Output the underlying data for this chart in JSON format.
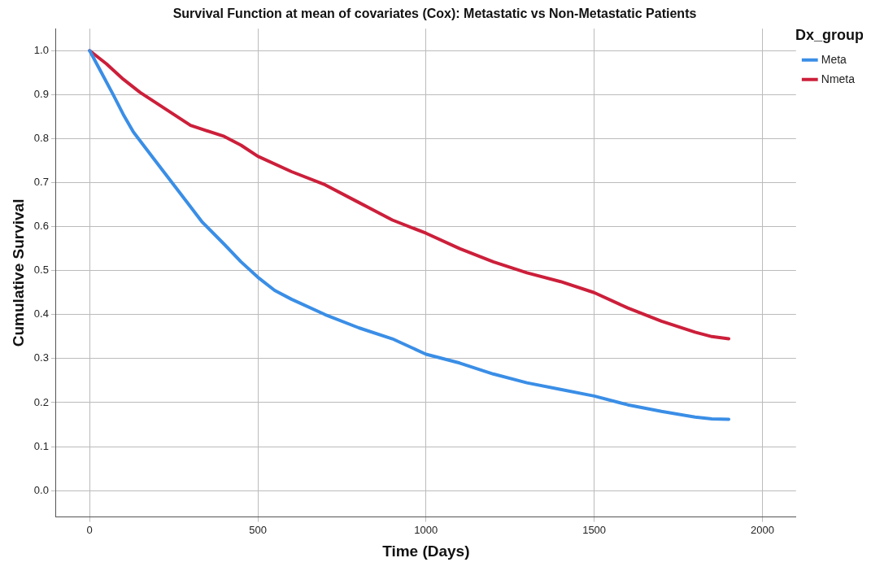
{
  "chart_data": {
    "type": "line",
    "title": "Survival Function at mean of covariates (Cox): Metastatic vs Non-Metastatic Patients",
    "xlabel": "Time (Days)",
    "ylabel": "Cumulative Survival",
    "legend_title": "Dx_group",
    "legend": "top right",
    "grid": true,
    "marker": "none",
    "line_style": "solid",
    "xlim": [
      -100,
      2100
    ],
    "xticks": [
      0,
      500,
      1000,
      1500,
      2000
    ],
    "ylim": [
      -0.06,
      1.05
    ],
    "yticks": [
      {
        "value": 0,
        "label": "0.0"
      },
      0.1,
      0.2,
      0.3,
      0.4,
      0.5,
      0.6,
      0.7,
      0.8,
      0.9,
      {
        "value": 1,
        "label": "1.0"
      }
    ],
    "series": [
      {
        "name": "Meta",
        "color": "#3a8ee6",
        "x": [
          0,
          35,
          70,
          100,
          130,
          170,
          200,
          250,
          300,
          335,
          400,
          450,
          500,
          550,
          600,
          700,
          800,
          900,
          1000,
          1100,
          1200,
          1300,
          1400,
          1500,
          1600,
          1700,
          1800,
          1850,
          1900
        ],
        "values": [
          1.0,
          0.95,
          0.9,
          0.855,
          0.815,
          0.775,
          0.745,
          0.695,
          0.645,
          0.61,
          0.56,
          0.52,
          0.485,
          0.455,
          0.435,
          0.4,
          0.37,
          0.345,
          0.31,
          0.29,
          0.265,
          0.245,
          0.23,
          0.215,
          0.195,
          0.18,
          0.167,
          0.163,
          0.162
        ]
      },
      {
        "name": "Nmeta",
        "color": "#cc1f3a",
        "x": [
          0,
          50,
          100,
          150,
          200,
          250,
          300,
          400,
          450,
          500,
          600,
          700,
          800,
          900,
          1000,
          1100,
          1200,
          1300,
          1400,
          1500,
          1600,
          1700,
          1800,
          1850,
          1900
        ],
        "values": [
          1.0,
          0.97,
          0.935,
          0.905,
          0.88,
          0.855,
          0.83,
          0.805,
          0.785,
          0.76,
          0.725,
          0.695,
          0.655,
          0.615,
          0.585,
          0.55,
          0.52,
          0.495,
          0.475,
          0.45,
          0.415,
          0.385,
          0.36,
          0.35,
          0.345
        ]
      }
    ]
  }
}
